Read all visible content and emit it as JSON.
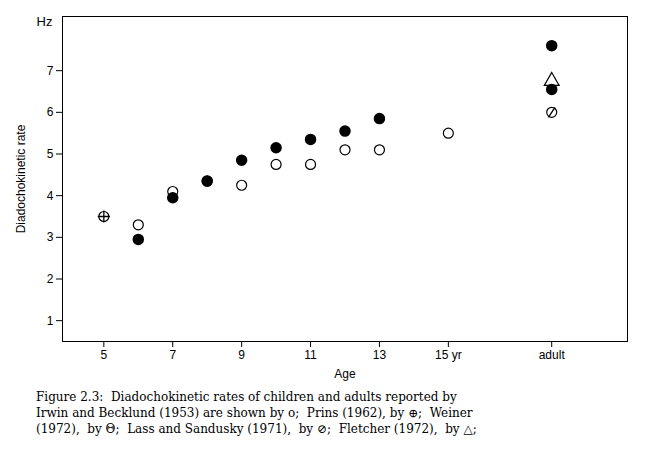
{
  "chart_data": {
    "type": "scatter",
    "xlabel": "Age",
    "ylabel": "Diadochokinetic rate",
    "annotations": [
      "Hz"
    ],
    "caption": "Figure 2.3:  Diadochokinetic rates of children and adults reported by\nIrwin and Becklund (1953) are shown by o;  Prins (1962), by ⊕;  Weiner\n(1972),  by Θ;  Lass and Sandusky (1971),  by ⊘;  Fletcher (1972),  by △;",
    "xlim": [
      3.8,
      20.2
    ],
    "xticks": [
      5,
      7,
      9,
      11,
      13,
      {
        "value": 15,
        "label": "15 yr"
      },
      {
        "value": 18,
        "label": "adult"
      }
    ],
    "ylim": [
      0.5,
      8.3
    ],
    "yticks": [
      1,
      2,
      3,
      4,
      5,
      6,
      7
    ],
    "grid": false,
    "series": [
      {
        "marker": "circle_open",
        "x": [
          6,
          7,
          8,
          9,
          10,
          11,
          12,
          13,
          15
        ],
        "values": [
          3.3,
          4.1,
          4.35,
          4.25,
          4.75,
          4.75,
          5.1,
          5.1,
          5.5
        ]
      },
      {
        "marker": "circle_plus",
        "x": [
          5
        ],
        "values": [
          3.5
        ]
      },
      {
        "marker": "circle_filled",
        "x": [
          6,
          7,
          8,
          9,
          10,
          11,
          12,
          13,
          18
        ],
        "values": [
          2.95,
          3.95,
          4.35,
          4.85,
          5.15,
          5.35,
          5.55,
          5.85,
          7.6
        ]
      },
      {
        "marker": "circle_slash",
        "x": [
          18
        ],
        "values": [
          6.0
        ]
      },
      {
        "marker": "triangle_open",
        "x": [
          18
        ],
        "values": [
          6.75
        ]
      },
      {
        "marker": "circle_filled",
        "x": [
          18
        ],
        "values": [
          6.55
        ]
      }
    ]
  }
}
